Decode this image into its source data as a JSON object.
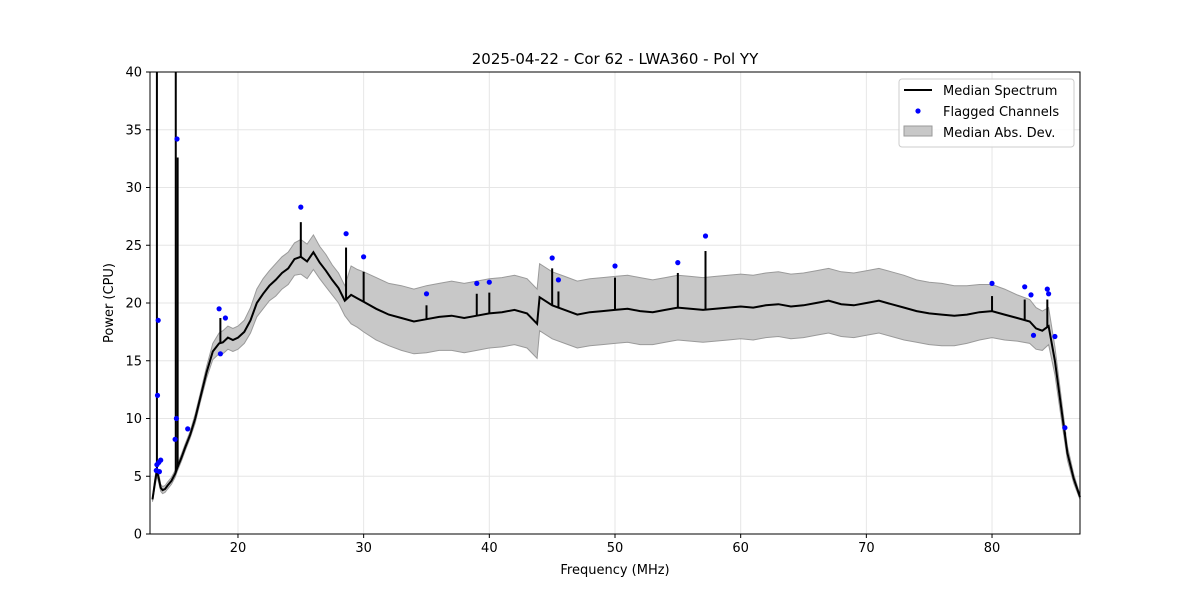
{
  "chart_data": {
    "type": "line",
    "title": "2025-04-22 - Cor 62 - LWA360 - Pol YY",
    "xlabel": "Frequency (MHz)",
    "ylabel": "Power (CPU)",
    "xlim": [
      13,
      87
    ],
    "ylim": [
      0,
      40
    ],
    "xticks": [
      20,
      30,
      40,
      50,
      60,
      70,
      80
    ],
    "yticks": [
      0,
      5,
      10,
      15,
      20,
      25,
      30,
      35,
      40
    ],
    "grid": true,
    "legend_position": "top-right",
    "colors": {
      "median": "#000000",
      "flagged": "#0000ff",
      "mad_fill": "#c8c8c8",
      "mad_edge": "#9a9a9a"
    },
    "legend": [
      {
        "label": "Median Spectrum",
        "kind": "line"
      },
      {
        "label": "Flagged Channels",
        "kind": "marker"
      },
      {
        "label": "Median Abs. Dev.",
        "kind": "patch"
      }
    ],
    "series": [
      {
        "name": "Median Spectrum",
        "x": [
          13.2,
          13.4,
          13.55,
          13.7,
          13.85,
          14.0,
          14.2,
          14.4,
          14.7,
          15.0,
          15.2,
          15.5,
          15.8,
          16.2,
          16.6,
          17.0,
          17.5,
          18.0,
          18.5,
          18.8,
          19.2,
          19.6,
          20.0,
          20.5,
          21.0,
          21.5,
          22.0,
          22.5,
          23.0,
          23.5,
          24.0,
          24.5,
          25.0,
          25.5,
          26.0,
          26.5,
          27.0,
          27.5,
          28.0,
          28.5,
          29.0,
          29.5,
          30.0,
          31.0,
          32.0,
          33.0,
          34.0,
          35.0,
          36.0,
          37.0,
          38.0,
          39.0,
          40.0,
          41.0,
          42.0,
          43.0,
          43.8,
          44.0,
          45.0,
          46.0,
          47.0,
          48.0,
          49.0,
          50.0,
          51.0,
          52.0,
          53.0,
          54.0,
          55.0,
          56.0,
          57.0,
          58.0,
          59.0,
          60.0,
          61.0,
          62.0,
          63.0,
          64.0,
          65.0,
          66.0,
          67.0,
          68.0,
          69.0,
          70.0,
          71.0,
          72.0,
          73.0,
          74.0,
          75.0,
          76.0,
          77.0,
          78.0,
          79.0,
          80.0,
          81.0,
          82.0,
          83.0,
          83.5,
          84.0,
          84.5,
          85.0,
          85.5,
          86.0,
          86.5,
          87.0
        ],
        "values": [
          3.0,
          4.5,
          5.5,
          4.8,
          4.0,
          3.8,
          3.9,
          4.2,
          4.6,
          5.2,
          5.8,
          6.6,
          7.5,
          8.6,
          10.0,
          11.8,
          14.0,
          15.8,
          16.5,
          16.6,
          17.0,
          16.8,
          17.0,
          17.5,
          18.5,
          20.0,
          20.8,
          21.5,
          22.0,
          22.6,
          23.0,
          23.8,
          24.0,
          23.6,
          24.4,
          23.5,
          22.8,
          22.0,
          21.3,
          20.2,
          20.7,
          20.4,
          20.1,
          19.5,
          19.0,
          18.7,
          18.4,
          18.6,
          18.8,
          18.9,
          18.7,
          18.9,
          19.1,
          19.2,
          19.4,
          19.1,
          18.2,
          20.5,
          19.8,
          19.4,
          19.0,
          19.2,
          19.3,
          19.4,
          19.5,
          19.3,
          19.2,
          19.4,
          19.6,
          19.5,
          19.4,
          19.5,
          19.6,
          19.7,
          19.6,
          19.8,
          19.9,
          19.7,
          19.8,
          20.0,
          20.2,
          19.9,
          19.8,
          20.0,
          20.2,
          19.9,
          19.6,
          19.3,
          19.1,
          19.0,
          18.9,
          19.0,
          19.2,
          19.3,
          19.0,
          18.7,
          18.4,
          17.8,
          17.6,
          18.0,
          15.0,
          11.0,
          7.0,
          4.8,
          3.2
        ]
      },
      {
        "name": "Median Abs. Dev.",
        "spread": [
          0.2,
          0.4,
          0.5,
          0.4,
          0.3,
          0.3,
          0.3,
          0.3,
          0.3,
          0.3,
          0.3,
          0.3,
          0.3,
          0.3,
          0.4,
          0.4,
          0.5,
          0.7,
          0.9,
          1.0,
          1.0,
          1.0,
          1.0,
          1.0,
          1.1,
          1.2,
          1.3,
          1.3,
          1.4,
          1.4,
          1.4,
          1.4,
          1.5,
          1.5,
          1.5,
          1.4,
          1.4,
          1.3,
          1.3,
          1.3,
          2.5,
          2.5,
          2.6,
          2.7,
          2.7,
          2.8,
          2.8,
          2.9,
          2.9,
          3.0,
          3.0,
          3.0,
          3.0,
          3.0,
          3.0,
          3.0,
          3.0,
          2.9,
          2.9,
          2.9,
          2.9,
          2.9,
          2.9,
          2.9,
          2.9,
          2.9,
          2.8,
          2.8,
          2.8,
          2.8,
          2.8,
          2.8,
          2.8,
          2.8,
          2.8,
          2.8,
          2.8,
          2.8,
          2.8,
          2.8,
          2.8,
          2.8,
          2.8,
          2.8,
          2.8,
          2.8,
          2.8,
          2.7,
          2.7,
          2.7,
          2.6,
          2.5,
          2.4,
          2.3,
          2.2,
          2.0,
          1.9,
          1.8,
          1.7,
          1.6,
          1.2,
          0.9,
          0.6,
          0.4,
          0.2
        ]
      }
    ],
    "spikes": [
      {
        "x": 13.55,
        "top": 40
      },
      {
        "x": 15.05,
        "top": 40
      },
      {
        "x": 15.2,
        "top": 32.6
      },
      {
        "x": 18.6,
        "top": 18.7
      },
      {
        "x": 25.0,
        "top": 27.0
      },
      {
        "x": 28.6,
        "top": 24.8
      },
      {
        "x": 30.0,
        "top": 22.7
      },
      {
        "x": 35.0,
        "top": 19.8
      },
      {
        "x": 39.0,
        "top": 20.8
      },
      {
        "x": 40.0,
        "top": 20.9
      },
      {
        "x": 45.0,
        "top": 23.0
      },
      {
        "x": 45.5,
        "top": 21.0
      },
      {
        "x": 50.0,
        "top": 22.2
      },
      {
        "x": 55.0,
        "top": 22.6
      },
      {
        "x": 57.2,
        "top": 24.5
      },
      {
        "x": 80.0,
        "top": 20.6
      },
      {
        "x": 82.6,
        "top": 20.3
      },
      {
        "x": 84.4,
        "top": 20.3
      },
      {
        "x": 85.8,
        "top": 8.8
      }
    ],
    "flagged": {
      "x": [
        13.5,
        13.55,
        13.6,
        13.65,
        13.7,
        13.75,
        13.85,
        15.0,
        15.1,
        15.15,
        16.0,
        18.5,
        18.6,
        19.0,
        25.0,
        28.6,
        30.0,
        35.0,
        39.0,
        40.0,
        45.0,
        45.5,
        50.0,
        55.0,
        57.2,
        80.0,
        82.6,
        83.1,
        83.3,
        84.4,
        84.5,
        85.0,
        85.8
      ],
      "y": [
        5.5,
        6.0,
        12.0,
        18.5,
        6.2,
        5.4,
        6.4,
        8.2,
        10.0,
        34.2,
        9.1,
        19.5,
        15.6,
        18.7,
        28.3,
        26.0,
        24.0,
        20.8,
        21.7,
        21.8,
        23.9,
        22.0,
        23.2,
        23.5,
        25.8,
        21.7,
        21.4,
        20.7,
        17.2,
        21.2,
        20.8,
        17.1,
        9.2
      ]
    }
  }
}
